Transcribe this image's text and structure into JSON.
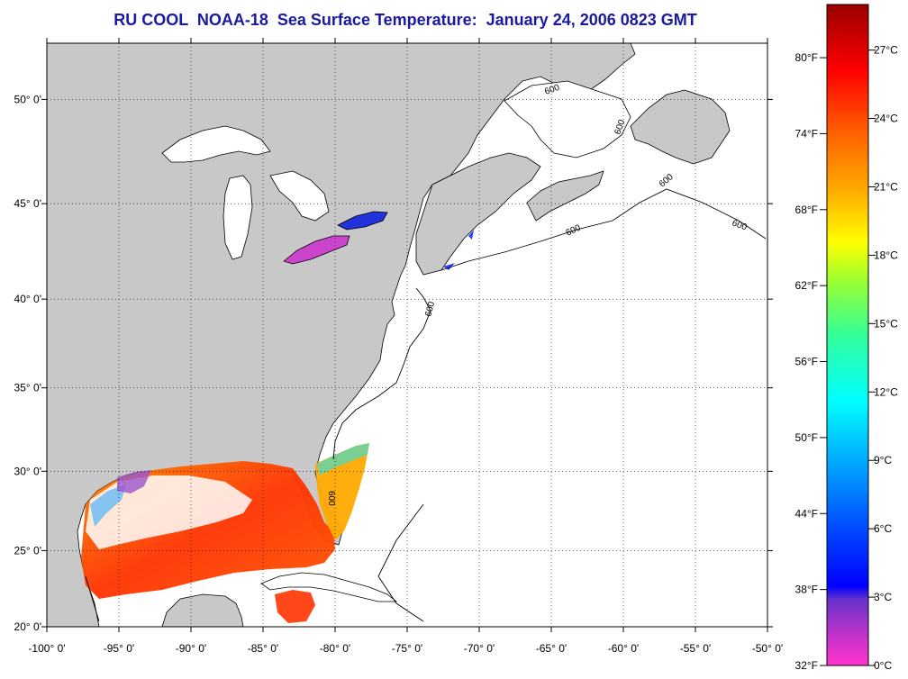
{
  "title": "RU COOL  NOAA-18  Sea Surface Temperature:  January 24, 2006 0823 GMT",
  "map": {
    "lon_range": [
      -100,
      -50
    ],
    "lat_range": [
      20,
      52.5
    ],
    "lon_labels": [
      "-100° 0'",
      "-95° 0'",
      "-90° 0'",
      "-85° 0'",
      "-80° 0'",
      "-75° 0'",
      "-70° 0'",
      "-65° 0'",
      "-60° 0'",
      "-55° 0'",
      "-50° 0'"
    ],
    "lat_labels": [
      "20° 0'",
      "25° 0'",
      "30° 0'",
      "35° 0'",
      "40° 0'",
      "45° 0'",
      "50° 0'"
    ],
    "contour_labels": [
      "600",
      "600",
      "600",
      "600",
      "600",
      "600",
      "600"
    ],
    "land_color": "#c8c8c8",
    "ocean_color": "#ffffff"
  },
  "colorbar": {
    "fahrenheit_labels": [
      "80°F",
      "74°F",
      "68°F",
      "62°F",
      "56°F",
      "50°F",
      "44°F",
      "38°F",
      "32°F"
    ],
    "celsius_labels": [
      "27°C",
      "24°C",
      "21°C",
      "18°C",
      "15°C",
      "12°C",
      "9°C",
      "6°C",
      "3°C",
      "0°C"
    ],
    "range_c": [
      0,
      29
    ],
    "colors": [
      "#ff33cc",
      "#9933cc",
      "#0000ff",
      "#0099ff",
      "#00ffff",
      "#33ff99",
      "#99ff33",
      "#ffff00",
      "#ffaa00",
      "#ff5500",
      "#ff0000",
      "#990000"
    ]
  }
}
